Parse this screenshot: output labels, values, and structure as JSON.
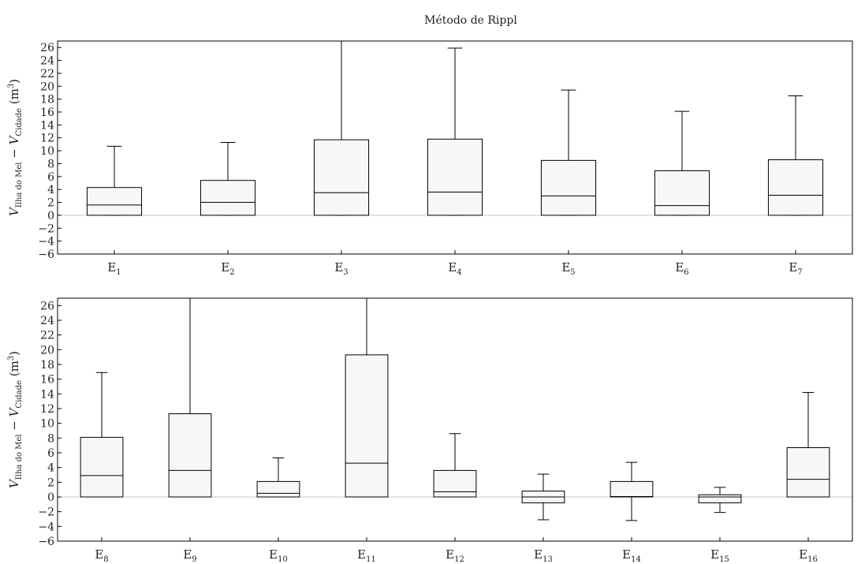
{
  "title": "Método de Rippl",
  "chart_data": [
    {
      "type": "box",
      "ylabel_main_1": "V",
      "ylabel_sub_1": "Ilha do Mel",
      "ylabel_op": " − ",
      "ylabel_main_2": "V",
      "ylabel_sub_2": "Cidade",
      "ylabel_unit_pre": " (m",
      "ylabel_unit_sup": "3",
      "ylabel_unit_post": ")",
      "ylim": [
        -6,
        27
      ],
      "yticks": [
        -6,
        -4,
        -2,
        0,
        2,
        4,
        6,
        8,
        10,
        12,
        14,
        16,
        18,
        20,
        22,
        24,
        26
      ],
      "categories": [
        {
          "base": "E",
          "sub": "1"
        },
        {
          "base": "E",
          "sub": "2"
        },
        {
          "base": "E",
          "sub": "3"
        },
        {
          "base": "E",
          "sub": "4"
        },
        {
          "base": "E",
          "sub": "5"
        },
        {
          "base": "E",
          "sub": "6"
        },
        {
          "base": "E",
          "sub": "7"
        }
      ],
      "boxes": [
        {
          "whislo": 0,
          "q1": 0,
          "med": 1.6,
          "q3": 4.3,
          "whishi": 10.7
        },
        {
          "whislo": 0,
          "q1": 0,
          "med": 2.0,
          "q3": 5.4,
          "whishi": 11.3
        },
        {
          "whislo": 0,
          "q1": 0,
          "med": 3.5,
          "q3": 11.7,
          "whishi": 27
        },
        {
          "whislo": 0,
          "q1": 0,
          "med": 3.6,
          "q3": 11.8,
          "whishi": 25.9
        },
        {
          "whislo": 0,
          "q1": 0,
          "med": 3.0,
          "q3": 8.5,
          "whishi": 19.4
        },
        {
          "whislo": 0,
          "q1": 0,
          "med": 1.5,
          "q3": 6.9,
          "whishi": 16.1
        },
        {
          "whislo": 0,
          "q1": 0,
          "med": 3.1,
          "q3": 8.6,
          "whishi": 18.5
        }
      ]
    },
    {
      "type": "box",
      "ylabel_main_1": "V",
      "ylabel_sub_1": "Ilha do Mel",
      "ylabel_op": " − ",
      "ylabel_main_2": "V",
      "ylabel_sub_2": "Cidade",
      "ylabel_unit_pre": " (m",
      "ylabel_unit_sup": "3",
      "ylabel_unit_post": ")",
      "ylim": [
        -6,
        27
      ],
      "yticks": [
        -6,
        -4,
        -2,
        0,
        2,
        4,
        6,
        8,
        10,
        12,
        14,
        16,
        18,
        20,
        22,
        24,
        26
      ],
      "categories": [
        {
          "base": "E",
          "sub": "8"
        },
        {
          "base": "E",
          "sub": "9"
        },
        {
          "base": "E",
          "sub": "10"
        },
        {
          "base": "E",
          "sub": "11"
        },
        {
          "base": "E",
          "sub": "12"
        },
        {
          "base": "E",
          "sub": "13"
        },
        {
          "base": "E",
          "sub": "14"
        },
        {
          "base": "E",
          "sub": "15"
        },
        {
          "base": "E",
          "sub": "16"
        }
      ],
      "boxes": [
        {
          "whislo": 0,
          "q1": 0,
          "med": 2.9,
          "q3": 8.1,
          "whishi": 16.9
        },
        {
          "whislo": 0,
          "q1": 0,
          "med": 3.6,
          "q3": 11.3,
          "whishi": 27
        },
        {
          "whislo": 0,
          "q1": 0,
          "med": 0.5,
          "q3": 2.1,
          "whishi": 5.3
        },
        {
          "whislo": 0,
          "q1": 0,
          "med": 4.6,
          "q3": 19.3,
          "whishi": 27
        },
        {
          "whislo": 0,
          "q1": 0,
          "med": 0.7,
          "q3": 3.6,
          "whishi": 8.6
        },
        {
          "whislo": -3.1,
          "q1": -0.8,
          "med": 0.0,
          "q3": 0.8,
          "whishi": 3.1
        },
        {
          "whislo": -3.2,
          "q1": 0,
          "med": 0.05,
          "q3": 2.1,
          "whishi": 4.7
        },
        {
          "whislo": -2.1,
          "q1": -0.8,
          "med": 0.0,
          "q3": 0.3,
          "whishi": 1.3
        },
        {
          "whislo": 0,
          "q1": 0,
          "med": 2.4,
          "q3": 6.7,
          "whishi": 14.2
        }
      ]
    }
  ]
}
